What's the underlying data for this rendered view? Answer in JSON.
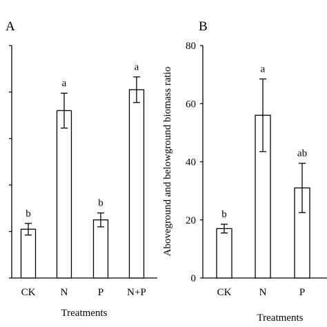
{
  "chart_data": [
    {
      "type": "bar",
      "panel": "A",
      "categories": [
        "CK",
        "N",
        "P",
        "N+P"
      ],
      "values": [
        21,
        72,
        25,
        81
      ],
      "errors": [
        2.5,
        7.5,
        3,
        5.5
      ],
      "significance": [
        "b",
        "a",
        "b",
        "a"
      ],
      "xlabel": "Treatments",
      "ylabel": "",
      "ylim": [
        0,
        100
      ],
      "yticks": [
        0,
        20,
        40,
        60,
        80,
        100
      ],
      "ytick_labels_visible": false,
      "bar_fill": "#ffffff",
      "bar_stroke": "#000000",
      "grid": false,
      "legend": "none"
    },
    {
      "type": "bar",
      "panel": "B",
      "categories": [
        "CK",
        "N",
        "P"
      ],
      "values": [
        17,
        56,
        31
      ],
      "errors": [
        1.5,
        12.5,
        8.5
      ],
      "significance": [
        "b",
        "a",
        "ab"
      ],
      "xlabel": "Treatments",
      "ylabel": "Aboveground and belowground biomass ratio",
      "ylim": [
        0,
        80
      ],
      "yticks": [
        0,
        20,
        40,
        60,
        80
      ],
      "ytick_labels_visible": true,
      "bar_fill": "#ffffff",
      "bar_stroke": "#000000",
      "grid": false,
      "legend": "none"
    }
  ]
}
